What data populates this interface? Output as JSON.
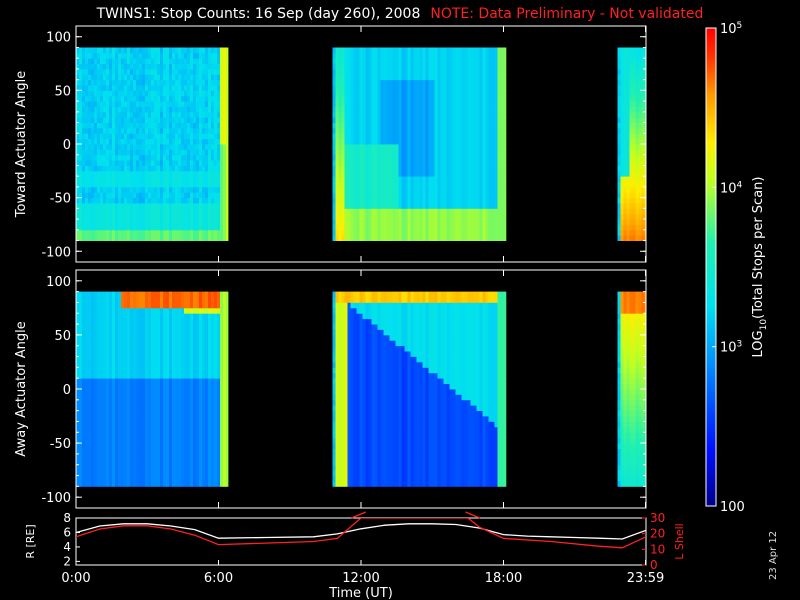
{
  "title": {
    "main": "TWINS1: Stop Counts: 16 Sep (day 260), 2008",
    "note": "NOTE: Data Preliminary - Not validated"
  },
  "side_date": "23 Apr 12",
  "colors": {
    "background": "#000000",
    "note": "#ff2020",
    "r_line": "#ffffff",
    "lshell_line": "#ff2020"
  },
  "chart_data": [
    {
      "type": "heatmap",
      "name": "toward",
      "ylabel": "Toward Actuator Angle",
      "ylim": [
        -110,
        110
      ],
      "yticks": [
        -100,
        -50,
        0,
        50,
        100
      ],
      "xlim": [
        0,
        24
      ],
      "data_segments": [
        [
          0,
          6.4
        ],
        [
          10.8,
          18.1
        ],
        [
          22.8,
          24
        ]
      ]
    },
    {
      "type": "heatmap",
      "name": "away",
      "ylabel": "Away Actuator Angle",
      "ylim": [
        -110,
        110
      ],
      "yticks": [
        -100,
        -50,
        0,
        50,
        100
      ],
      "xlim": [
        0,
        24
      ],
      "data_segments": [
        [
          0,
          6.4
        ],
        [
          10.8,
          18.1
        ],
        [
          22.8,
          24
        ]
      ]
    },
    {
      "type": "line",
      "name": "orbit",
      "xlabel": "Time (UT)",
      "ylabel_left": "R [RE]",
      "ylabel_right": "L Shell",
      "xticks": [
        "0:00",
        "6:00",
        "12:00",
        "18:00",
        "23:59"
      ],
      "xtick_hours": [
        0,
        6,
        12,
        18,
        23.98
      ],
      "ylim_left": [
        1.5,
        8
      ],
      "yticks_left": [
        2,
        4,
        6,
        8
      ],
      "ylim_right": [
        0,
        30
      ],
      "yticks_right": [
        0,
        10,
        20,
        30
      ],
      "series": [
        {
          "name": "R [RE]",
          "color": "#ffffff",
          "x": [
            0,
            1,
            2,
            3,
            4,
            5,
            6,
            8,
            10,
            11,
            12,
            13,
            14,
            15,
            16,
            17,
            18,
            19,
            20,
            21,
            22,
            23,
            24
          ],
          "y": [
            6.0,
            6.9,
            7.2,
            7.2,
            6.9,
            6.4,
            5.2,
            5.3,
            5.4,
            5.8,
            6.5,
            7.0,
            7.2,
            7.2,
            7.1,
            6.6,
            5.7,
            5.5,
            5.4,
            5.3,
            5.2,
            5.1,
            6.3
          ]
        },
        {
          "name": "L Shell",
          "color": "#ff2020",
          "x": [
            0,
            1,
            2,
            3,
            4,
            5,
            6,
            8,
            10,
            11,
            12,
            16.5,
            17,
            18,
            20,
            22,
            23,
            24
          ],
          "y": [
            18,
            23,
            25,
            25,
            23,
            19,
            13,
            14,
            15,
            17,
            30,
            30,
            24,
            17,
            15,
            12,
            11,
            18
          ]
        }
      ]
    }
  ],
  "colorbar": {
    "label": "LOG10(Total Stops per Scan)",
    "label_main": "LOG",
    "label_sub": "10",
    "label_rest": "(Total Stops per Scan)",
    "tick_labels": [
      {
        "base": "10",
        "exp": "5",
        "log": 5
      },
      {
        "base": "10",
        "exp": "4",
        "log": 4
      },
      {
        "base": "10",
        "exp": "3",
        "log": 3
      },
      {
        "plain": "100",
        "log": 2
      }
    ],
    "range_log": [
      2,
      5
    ]
  }
}
